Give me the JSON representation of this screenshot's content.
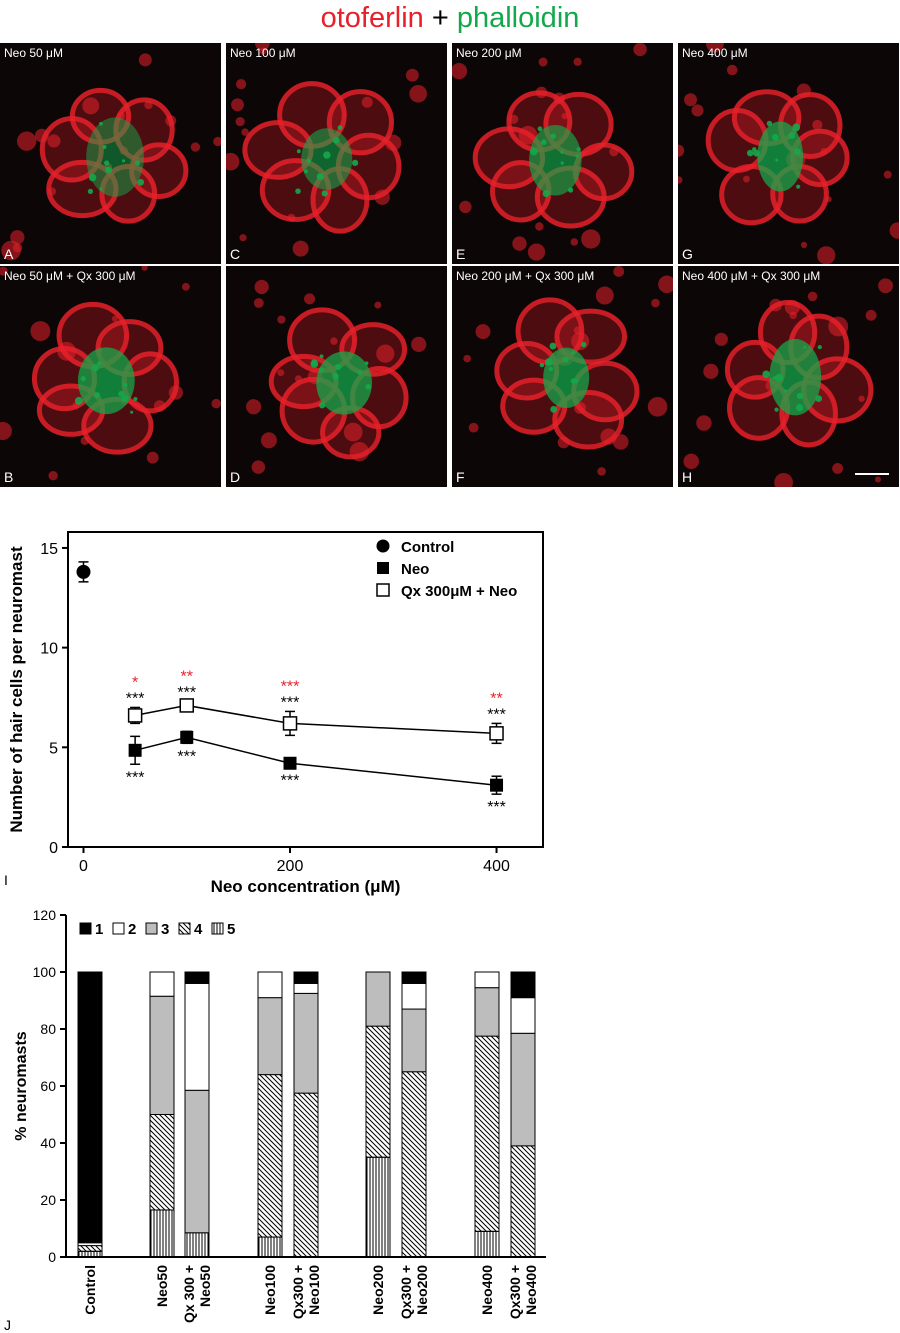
{
  "figure_title": {
    "part1": "otoferlin",
    "plus": "+",
    "part2": "phalloidin"
  },
  "colors": {
    "otoferlin": "#e8202a",
    "phalloidin": "#13a84b"
  },
  "micrographs": [
    {
      "letter": "A",
      "label": "Neo 50 μM",
      "row": 0,
      "col": 0
    },
    {
      "letter": "C",
      "label": "Neo 100 μM",
      "row": 0,
      "col": 1
    },
    {
      "letter": "E",
      "label": "Neo 200 μM",
      "row": 0,
      "col": 2
    },
    {
      "letter": "G",
      "label": "Neo 400 μM",
      "row": 0,
      "col": 3
    },
    {
      "letter": "B",
      "label": "Neo 50 μM + Qx 300 μM",
      "row": 1,
      "col": 0
    },
    {
      "letter": "D",
      "label": "",
      "row": 1,
      "col": 1
    },
    {
      "letter": "F",
      "label": "Neo 200 μM + Qx 300 μM",
      "row": 1,
      "col": 2
    },
    {
      "letter": "H",
      "label": "Neo 400 μM + Qx 300 μM",
      "row": 1,
      "col": 3,
      "scale_bar": true
    }
  ],
  "chart_data": [
    {
      "panel": "I",
      "type": "line",
      "xlabel": "Neo concentration (μM)",
      "ylabel": "Number of hair cells per neuromast",
      "xlim": [
        -15,
        445
      ],
      "ylim": [
        0,
        15.8
      ],
      "xticks": [
        0,
        200,
        400
      ],
      "yticks": [
        0,
        5,
        10,
        15
      ],
      "legend_position": "top-right",
      "series": [
        {
          "name": "Control",
          "marker": "filled-circle",
          "points": [
            {
              "x": 0,
              "y": 13.8,
              "err": 0.5
            }
          ]
        },
        {
          "name": "Neo",
          "marker": "filled-square",
          "points": [
            {
              "x": 50,
              "y": 4.85,
              "err": 0.7,
              "sig_below": "***"
            },
            {
              "x": 100,
              "y": 5.5,
              "err": 0.3,
              "sig_below": "***"
            },
            {
              "x": 200,
              "y": 4.2,
              "err": 0.2,
              "sig_below": "***"
            },
            {
              "x": 400,
              "y": 3.1,
              "err": 0.45,
              "sig_below": "***"
            }
          ]
        },
        {
          "name": "Qx 300μM + Neo",
          "marker": "open-square",
          "points": [
            {
              "x": 50,
              "y": 6.6,
              "err": 0.4,
              "sig_above": "***",
              "sig_red": "*"
            },
            {
              "x": 100,
              "y": 7.1,
              "err": 0.2,
              "sig_above": "***",
              "sig_red": "**"
            },
            {
              "x": 200,
              "y": 6.2,
              "err": 0.6,
              "sig_above": "***",
              "sig_red": "***"
            },
            {
              "x": 400,
              "y": 5.7,
              "err": 0.5,
              "sig_above": "***",
              "sig_red": "**"
            }
          ]
        }
      ]
    },
    {
      "panel": "J",
      "type": "bar",
      "stacked": true,
      "ylabel": "% neuromasts",
      "xlabel": "",
      "ylim": [
        0,
        120
      ],
      "yticks": [
        0,
        20,
        40,
        60,
        80,
        100,
        120
      ],
      "legend_position": "top-left",
      "legend": [
        {
          "name": "1",
          "pattern": "solid-black"
        },
        {
          "name": "2",
          "pattern": "white"
        },
        {
          "name": "3",
          "pattern": "grey"
        },
        {
          "name": "4",
          "pattern": "diagonal-hatch"
        },
        {
          "name": "5",
          "pattern": "vertical-lines"
        }
      ],
      "categories": [
        {
          "label": [
            "Control"
          ],
          "values": {
            "5": 2,
            "4": 2,
            "3": 0,
            "2": 1,
            "1": 95
          }
        },
        {
          "label": [
            "Neo50"
          ],
          "values": {
            "5": 16.5,
            "4": 33.5,
            "3": 41.5,
            "2": 8.5,
            "1": 0
          }
        },
        {
          "label": [
            "Qx 300 +",
            "Neo50"
          ],
          "values": {
            "5": 8.5,
            "4": 0,
            "3": 50,
            "2": 37.5,
            "1": 4
          }
        },
        {
          "label": [
            "Neo100"
          ],
          "values": {
            "5": 7,
            "4": 57,
            "3": 27,
            "2": 9,
            "1": 0
          }
        },
        {
          "label": [
            "Qx300 +",
            "Neo100"
          ],
          "values": {
            "5": 0,
            "4": 57.5,
            "3": 35,
            "2": 3.5,
            "1": 4
          }
        },
        {
          "label": [
            "Neo200"
          ],
          "values": {
            "5": 35,
            "4": 46,
            "3": 19,
            "2": 0,
            "1": 0
          }
        },
        {
          "label": [
            "Qx300 +",
            "Neo200"
          ],
          "values": {
            "5": 0,
            "4": 65,
            "3": 22,
            "2": 9,
            "1": 4
          }
        },
        {
          "label": [
            "Neo400"
          ],
          "values": {
            "5": 9,
            "4": 68.5,
            "3": 17,
            "2": 5.5,
            "1": 0
          }
        },
        {
          "label": [
            "Qx300 +",
            "Neo400"
          ],
          "values": {
            "5": 0,
            "4": 39,
            "3": 39.5,
            "2": 12.5,
            "1": 9
          }
        }
      ]
    }
  ]
}
